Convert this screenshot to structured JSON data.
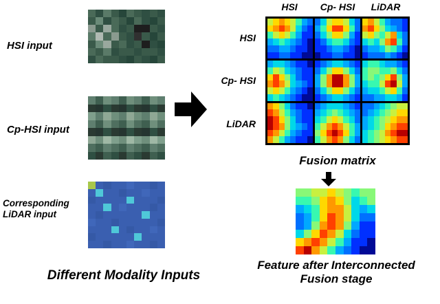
{
  "left_panel": {
    "hsi_label": "HSI input",
    "cp_hsi_label": "Cp-HSI input",
    "lidar_label_line1": "Corresponding",
    "lidar_label_line2": "LiDAR input",
    "caption": "Different Modality Inputs"
  },
  "matrix": {
    "col_headers": [
      "HSI",
      "Cp- HSI",
      "LiDAR"
    ],
    "row_labels": [
      "HSI",
      "Cp- HSI",
      "LiDAR"
    ],
    "caption": "Fusion matrix"
  },
  "feature": {
    "caption_line1": "Feature after Interconnected",
    "caption_line2": "Fusion stage"
  },
  "colors": {
    "arrow": "#000000",
    "grid_lines": "#000000"
  },
  "palettes": {
    "jet": {
      "0": "#000a96",
      "1": "#0030ff",
      "2": "#0070ff",
      "3": "#00a8ff",
      "4": "#00d8e8",
      "5": "#38f8b0",
      "6": "#88f878",
      "7": "#c8f040",
      "8": "#ffd800",
      "9": "#ff9800",
      "a": "#ff4000",
      "b": "#b80000"
    },
    "hsi": {
      "a": "#3a5a4a",
      "b": "#2f4f42",
      "c": "#4a6a58",
      "d": "#5a7a68",
      "e": "#6a8a78",
      "f": "#26463a",
      "g": "#8a9a8f",
      "h": "#b0bab2",
      "i": "#1e1e1e",
      "j": "#303030",
      "k": "#565f58",
      "l": "#99a89e"
    },
    "cp": {
      "a": "#2a3a32",
      "b": "#253530",
      "c": "#2f4f42",
      "d": "#3f5f50",
      "e": "#4f6f5f",
      "f": "#5f7f6f",
      "g": "#6f8f7c",
      "h": "#7f9f8c",
      "i": "#8fa895",
      "j": "#9fb8a5"
    },
    "lidar": {
      "a": "#3a5fb0",
      "b": "#3559a6",
      "c": "#4067ba",
      "d": "#4fc8d8",
      "e": "#a8c84a",
      "f": "#6adce0"
    }
  },
  "images": {
    "hsi_input": {
      "palette_ref": "hsi",
      "rows": [
        "cbdafcabab",
        "aebcafcbfa",
        "galcbaiiab",
        "dhcgabjafa",
        "aelacbaibf",
        "cadbaabaab",
        "bcaabfabfa"
      ]
    },
    "cp_hsi_input": {
      "palette_ref": "cp",
      "rows": [
        "fdgfdgfdgf",
        "abcabcabca",
        "hfigfigfig",
        "fdgedgedge",
        "abcabcabca",
        "igjhgjhgjh",
        "edfedfedfe",
        "cadcadcadc"
      ]
    },
    "lidar_input": {
      "palette_ref": "lidar",
      "rows": [
        "eabaacaaba",
        "adaabaacaa",
        "baaaadaaab",
        "aadacaaaba",
        "abaaaaadaa",
        "caabaaaaab",
        "aaadabaaca",
        "baaaaadaaa",
        "aabaacaaba"
      ]
    },
    "matrix_cells": [
      {
        "palette_ref": "jet",
        "rows": [
          "78987532",
          "89a97421",
          "57875311",
          "34543210",
          "22332110",
          "11221100"
        ]
      },
      {
        "palette_ref": "jet",
        "rows": [
          "24788742",
          "358aa852",
          "24688631",
          "12455421",
          "11233210",
          "01122110"
        ]
      },
      {
        "palette_ref": "jet",
        "rows": [
          "89753221",
          "9a864321",
          "78657942",
          "45469a52",
          "23346531",
          "12223210"
        ]
      },
      {
        "palette_ref": "jet",
        "rows": [
          "34432110",
          "57643211",
          "8a864211",
          "9a974321",
          "78753210",
          "45432100"
        ]
      },
      {
        "palette_ref": "jet",
        "rows": [
          "12344321",
          "24688642",
          "369bb963",
          "369bb963",
          "24688642",
          "12344321"
        ]
      },
      {
        "palette_ref": "jet",
        "rows": [
          "45543321",
          "56655642",
          "56568a63",
          "4557ab73",
          "34457852",
          "22334431"
        ]
      },
      {
        "palette_ref": "jet",
        "rows": [
          "98642110",
          "a9753211",
          "ba864211",
          "ba964321",
          "a9753211",
          "97532110"
        ]
      },
      {
        "palette_ref": "jet",
        "rows": [
          "23444321",
          "34565432",
          "45787542",
          "579a9753",
          "68aba853",
          "579a9642"
        ]
      },
      {
        "palette_ref": "jet",
        "rows": [
          "22345677",
          "23456788",
          "34567899",
          "345689aa",
          "45679abb",
          "456789aa"
        ]
      }
    ],
    "feature_map": {
      "palette_ref": "jet",
      "rows": [
        "6677876566",
        "5568986456",
        "3458997434",
        "2358a97422",
        "2369a96311",
        "468a974211",
        "89a9753110",
        "ab97532100"
      ]
    }
  }
}
